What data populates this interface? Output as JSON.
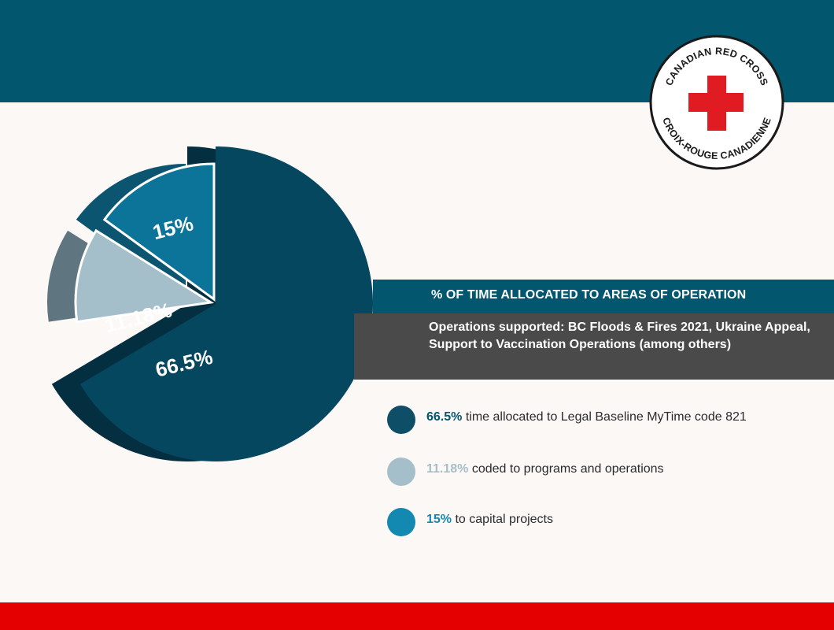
{
  "logo": {
    "text_top": "CANADIAN RED CROSS",
    "text_bottom": "CROIX-ROUGE CANADIENNE",
    "icon": "red-cross"
  },
  "colors": {
    "header": "#02566e",
    "footer": "#e50000",
    "series_main": "#05475f",
    "series_light": "#a5bfca",
    "series_mid": "#0f86ad",
    "subtitle_band": "#4a4a4a"
  },
  "chart_data": {
    "type": "pie",
    "title": "% OF TIME ALLOCATED TO AREAS OF OPERATION",
    "subtitle": "Operations supported: BC Floods & Fires 2021, Ukraine Appeal, Support to Vaccination Operations (among others)",
    "slices": [
      {
        "value": 66.5,
        "label": "66.5%",
        "description": "time allocated to Legal Baseline MyTime code 821",
        "color": "#05475f"
      },
      {
        "value": 11.18,
        "label": "11.18%",
        "description": "coded to programs and operations",
        "color": "#a5bfca"
      },
      {
        "value": 15,
        "label": "15%",
        "description": "to capital projects",
        "color": "#0f86ad"
      }
    ],
    "style": "3d-exploded"
  }
}
